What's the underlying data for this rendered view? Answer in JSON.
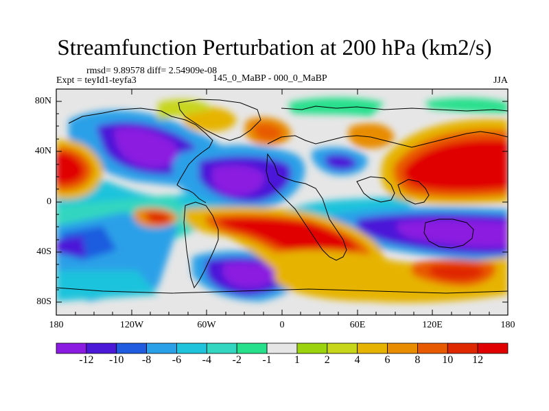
{
  "title": "Streamfunction Perturbation at 200 hPa (km2/s)",
  "stats": "rmsd= 9.89578 diff= 2.54909e-08",
  "experiment": "Expt = teyId1-teyfa3",
  "center_label": "145_0_MaBP - 000_0_MaBP",
  "season": "JJA",
  "y_axis": {
    "ticks": [
      "80N",
      "40N",
      "0",
      "40S",
      "80S"
    ]
  },
  "x_axis": {
    "ticks": [
      "180",
      "120W",
      "60W",
      "0",
      "60E",
      "120E",
      "180"
    ]
  },
  "colorbar": {
    "labels": [
      "-12",
      "-10",
      "-8",
      "-6",
      "-4",
      "-2",
      "-1",
      "1",
      "2",
      "4",
      "6",
      "8",
      "10",
      "12"
    ],
    "colors": [
      "#8b1be0",
      "#4b18d8",
      "#1f5cdf",
      "#2aa0e8",
      "#1fc3dc",
      "#33d6c0",
      "#26e08c",
      "#e6e6e6",
      "#9bd40f",
      "#c7d61a",
      "#e6b400",
      "#e88c00",
      "#e85a00",
      "#e02800",
      "#e00000"
    ]
  }
}
